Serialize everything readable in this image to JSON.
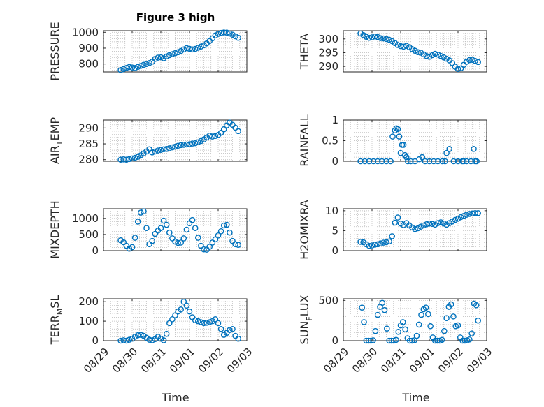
{
  "figure_title": "Figure 3 high",
  "marker_color": "#0072BD",
  "x_label": "Time",
  "x_tick_labels": [
    "08/29",
    "08/30",
    "08/31",
    "09/01",
    "09/02",
    "09/03"
  ],
  "chart_data": [
    {
      "type": "scatter",
      "ylabel": "PRESSURE",
      "xlim": [
        "08/29",
        "09/03"
      ],
      "ylim": [
        750,
        1010
      ],
      "yticks": [
        800,
        900,
        1000
      ],
      "yticklabels": [
        "800",
        "900",
        "1000"
      ],
      "grid": true,
      "x": [
        0.6,
        0.7,
        0.8,
        0.9,
        1.0,
        1.1,
        1.2,
        1.3,
        1.4,
        1.5,
        1.6,
        1.7,
        1.8,
        1.9,
        2.0,
        2.1,
        2.2,
        2.3,
        2.4,
        2.5,
        2.6,
        2.7,
        2.8,
        2.9,
        3.0,
        3.1,
        3.2,
        3.3,
        3.4,
        3.5,
        3.6,
        3.7,
        3.8,
        3.9,
        4.0,
        4.1,
        4.2,
        4.3,
        4.4,
        4.5,
        4.6,
        4.7
      ],
      "y": [
        762,
        768,
        775,
        781,
        778,
        775,
        782,
        788,
        795,
        800,
        806,
        815,
        832,
        840,
        842,
        836,
        848,
        856,
        862,
        868,
        874,
        882,
        892,
        900,
        896,
        892,
        895,
        902,
        910,
        918,
        930,
        945,
        962,
        980,
        990,
        996,
        999,
        998,
        992,
        985,
        975,
        965
      ]
    },
    {
      "type": "scatter",
      "ylabel": "THETA",
      "xlim": [
        "08/29",
        "09/03"
      ],
      "ylim": [
        288,
        303
      ],
      "yticks": [
        290,
        295,
        300
      ],
      "yticklabels": [
        "290",
        "295",
        "300"
      ],
      "grid": true,
      "x": [
        0.6,
        0.7,
        0.8,
        0.9,
        1.0,
        1.1,
        1.2,
        1.3,
        1.4,
        1.5,
        1.6,
        1.7,
        1.8,
        1.9,
        2.0,
        2.1,
        2.2,
        2.3,
        2.4,
        2.5,
        2.6,
        2.7,
        2.8,
        2.9,
        3.0,
        3.1,
        3.2,
        3.3,
        3.4,
        3.5,
        3.6,
        3.7,
        3.8,
        3.9,
        4.0,
        4.1,
        4.2,
        4.3,
        4.4,
        4.5,
        4.6,
        4.7
      ],
      "y": [
        302.0,
        301.4,
        300.8,
        300.4,
        300.6,
        300.9,
        300.7,
        300.3,
        300.2,
        300.0,
        299.7,
        299.2,
        298.5,
        297.8,
        297.4,
        297.2,
        297.5,
        297.0,
        296.3,
        295.7,
        295.2,
        295.0,
        294.4,
        293.8,
        293.5,
        294.1,
        294.6,
        294.3,
        293.8,
        293.3,
        292.8,
        292.2,
        291.2,
        289.9,
        289.1,
        289.3,
        290.6,
        291.7,
        292.3,
        292.4,
        292.0,
        291.6
      ]
    },
    {
      "type": "scatter",
      "ylabel": "AIR_TEMP",
      "ylabel_main": "AIR",
      "ylabel_sub": "T",
      "ylabel_rest": "EMP",
      "xlim": [
        "08/29",
        "09/03"
      ],
      "ylim": [
        279.5,
        292.5
      ],
      "yticks": [
        280,
        285,
        290
      ],
      "yticklabels": [
        "280",
        "285",
        "290"
      ],
      "grid": true,
      "x": [
        0.6,
        0.7,
        0.8,
        0.9,
        1.0,
        1.1,
        1.2,
        1.3,
        1.4,
        1.5,
        1.6,
        1.7,
        1.8,
        1.9,
        2.0,
        2.1,
        2.2,
        2.3,
        2.4,
        2.5,
        2.6,
        2.7,
        2.8,
        2.9,
        3.0,
        3.1,
        3.2,
        3.3,
        3.4,
        3.5,
        3.6,
        3.7,
        3.8,
        3.9,
        4.0,
        4.1,
        4.2,
        4.3,
        4.4,
        4.5,
        4.6,
        4.7
      ],
      "y": [
        280.0,
        280.1,
        280.0,
        280.2,
        280.4,
        280.6,
        280.9,
        281.4,
        282.0,
        282.6,
        283.3,
        282.3,
        282.6,
        282.9,
        283.1,
        283.3,
        283.4,
        283.6,
        283.9,
        284.1,
        284.4,
        284.6,
        284.7,
        284.8,
        284.9,
        285.1,
        285.2,
        285.5,
        285.9,
        286.4,
        287.0,
        287.6,
        287.3,
        287.5,
        287.8,
        288.5,
        289.6,
        290.8,
        291.7,
        291.0,
        290.1,
        289.0
      ]
    },
    {
      "type": "scatter",
      "ylabel": "RAINFALL",
      "xlim": [
        "08/29",
        "09/03"
      ],
      "ylim": [
        0,
        1.0
      ],
      "yticks": [
        0,
        0.5,
        1
      ],
      "yticklabels": [
        "0",
        "0.5",
        "1"
      ],
      "grid": true,
      "x": [
        0.6,
        0.75,
        0.9,
        1.05,
        1.2,
        1.35,
        1.5,
        1.65,
        1.72,
        1.8,
        1.85,
        1.9,
        1.95,
        2.0,
        2.05,
        2.1,
        2.15,
        2.2,
        2.25,
        2.35,
        2.5,
        2.65,
        2.75,
        2.85,
        3.0,
        3.15,
        3.3,
        3.45,
        3.55,
        3.6,
        3.7,
        3.85,
        4.0,
        4.15,
        4.2,
        4.3,
        4.45,
        4.55,
        4.6,
        4.65
      ],
      "y": [
        0,
        0,
        0,
        0,
        0,
        0,
        0,
        0,
        0.6,
        0.75,
        0.8,
        0.78,
        0.6,
        0.2,
        0.4,
        0.4,
        0.15,
        0.1,
        0,
        0,
        0,
        0.05,
        0.1,
        0,
        0,
        0,
        0,
        0,
        0,
        0.2,
        0.3,
        0,
        0,
        0,
        0,
        0,
        0,
        0.3,
        0,
        0
      ]
    },
    {
      "type": "scatter",
      "ylabel": "MIXDEPTH",
      "xlim": [
        "08/29",
        "09/03"
      ],
      "ylim": [
        0,
        1300
      ],
      "yticks": [
        0,
        500,
        1000
      ],
      "yticklabels": [
        "0",
        "500",
        "1000"
      ],
      "grid": true,
      "x": [
        0.6,
        0.7,
        0.8,
        0.9,
        1.0,
        1.1,
        1.2,
        1.3,
        1.4,
        1.5,
        1.6,
        1.7,
        1.8,
        1.9,
        2.0,
        2.1,
        2.2,
        2.3,
        2.4,
        2.5,
        2.6,
        2.7,
        2.8,
        2.9,
        3.0,
        3.1,
        3.2,
        3.3,
        3.4,
        3.5,
        3.6,
        3.7,
        3.8,
        3.9,
        4.0,
        4.1,
        4.2,
        4.3,
        4.4,
        4.5,
        4.6,
        4.7
      ],
      "y": [
        320,
        260,
        150,
        60,
        110,
        400,
        900,
        1180,
        1220,
        700,
        200,
        300,
        520,
        620,
        700,
        930,
        800,
        560,
        380,
        280,
        240,
        250,
        380,
        650,
        850,
        950,
        700,
        400,
        150,
        40,
        30,
        120,
        250,
        350,
        470,
        600,
        780,
        800,
        560,
        300,
        200,
        180
      ]
    },
    {
      "type": "scatter",
      "ylabel": "H2OMIXRA",
      "xlim": [
        "08/29",
        "09/03"
      ],
      "ylim": [
        0,
        10.5
      ],
      "yticks": [
        0,
        5,
        10
      ],
      "yticklabels": [
        "0",
        "5",
        "10"
      ],
      "grid": true,
      "x": [
        0.6,
        0.7,
        0.8,
        0.9,
        1.0,
        1.1,
        1.2,
        1.3,
        1.4,
        1.5,
        1.6,
        1.7,
        1.8,
        1.9,
        2.0,
        2.1,
        2.2,
        2.3,
        2.4,
        2.5,
        2.6,
        2.7,
        2.8,
        2.9,
        3.0,
        3.1,
        3.2,
        3.3,
        3.4,
        3.5,
        3.6,
        3.7,
        3.8,
        3.9,
        4.0,
        4.1,
        4.2,
        4.3,
        4.4,
        4.5,
        4.6,
        4.7
      ],
      "y": [
        2.2,
        2.1,
        1.6,
        1.2,
        1.3,
        1.5,
        1.6,
        1.8,
        2.0,
        2.1,
        2.3,
        3.6,
        7.0,
        8.3,
        6.8,
        6.4,
        6.9,
        6.3,
        5.8,
        5.4,
        5.6,
        6.0,
        6.3,
        6.6,
        6.8,
        6.7,
        6.5,
        6.9,
        7.1,
        6.8,
        6.5,
        6.9,
        7.3,
        7.7,
        8.0,
        8.4,
        8.7,
        9.0,
        9.2,
        9.3,
        9.4,
        9.4
      ]
    },
    {
      "type": "scatter",
      "ylabel": "TERR_MSL",
      "ylabel_main": "TERR",
      "ylabel_sub": "M",
      "ylabel_rest": "SL",
      "xlim": [
        "08/29",
        "09/03"
      ],
      "ylim": [
        0,
        215
      ],
      "yticks": [
        0,
        100,
        200
      ],
      "yticklabels": [
        "0",
        "100",
        "200"
      ],
      "grid": true,
      "x": [
        0.6,
        0.7,
        0.8,
        0.9,
        1.0,
        1.1,
        1.2,
        1.3,
        1.4,
        1.5,
        1.6,
        1.7,
        1.8,
        1.9,
        2.0,
        2.1,
        2.2,
        2.3,
        2.4,
        2.5,
        2.6,
        2.7,
        2.8,
        2.9,
        3.0,
        3.1,
        3.2,
        3.3,
        3.4,
        3.5,
        3.6,
        3.7,
        3.8,
        3.9,
        4.0,
        4.1,
        4.2,
        4.3,
        4.4,
        4.5,
        4.6,
        4.7
      ],
      "y": [
        0,
        2,
        0,
        5,
        10,
        20,
        28,
        30,
        25,
        15,
        5,
        2,
        8,
        20,
        10,
        2,
        35,
        90,
        110,
        130,
        150,
        160,
        200,
        180,
        150,
        120,
        105,
        100,
        95,
        90,
        92,
        95,
        100,
        110,
        90,
        60,
        30,
        40,
        55,
        60,
        25,
        10
      ]
    },
    {
      "type": "scatter",
      "ylabel": "SUN_FLUX",
      "ylabel_main": "SUN",
      "ylabel_sub": "F",
      "ylabel_rest": "LUX",
      "xlim": [
        "08/29",
        "09/03"
      ],
      "ylim": [
        0,
        520
      ],
      "yticks": [
        0,
        500
      ],
      "yticklabels": [
        "0",
        "500"
      ],
      "grid": true,
      "x": [
        0.65,
        0.72,
        0.8,
        0.88,
        0.96,
        1.04,
        1.12,
        1.2,
        1.28,
        1.36,
        1.44,
        1.52,
        1.6,
        1.68,
        1.76,
        1.84,
        1.92,
        2.0,
        2.08,
        2.16,
        2.24,
        2.32,
        2.4,
        2.48,
        2.56,
        2.64,
        2.72,
        2.8,
        2.88,
        2.96,
        3.04,
        3.12,
        3.2,
        3.28,
        3.36,
        3.44,
        3.52,
        3.6,
        3.68,
        3.76,
        3.84,
        3.92,
        4.0,
        4.08,
        4.16,
        4.24,
        4.32,
        4.4,
        4.48,
        4.56,
        4.64,
        4.7
      ],
      "y": [
        410,
        230,
        0,
        0,
        0,
        5,
        120,
        320,
        420,
        470,
        380,
        150,
        0,
        0,
        0,
        10,
        110,
        190,
        230,
        140,
        30,
        0,
        0,
        5,
        60,
        200,
        320,
        390,
        410,
        330,
        180,
        40,
        0,
        0,
        0,
        10,
        120,
        280,
        420,
        450,
        300,
        180,
        190,
        40,
        0,
        0,
        5,
        15,
        90,
        460,
        440,
        250
      ]
    }
  ]
}
